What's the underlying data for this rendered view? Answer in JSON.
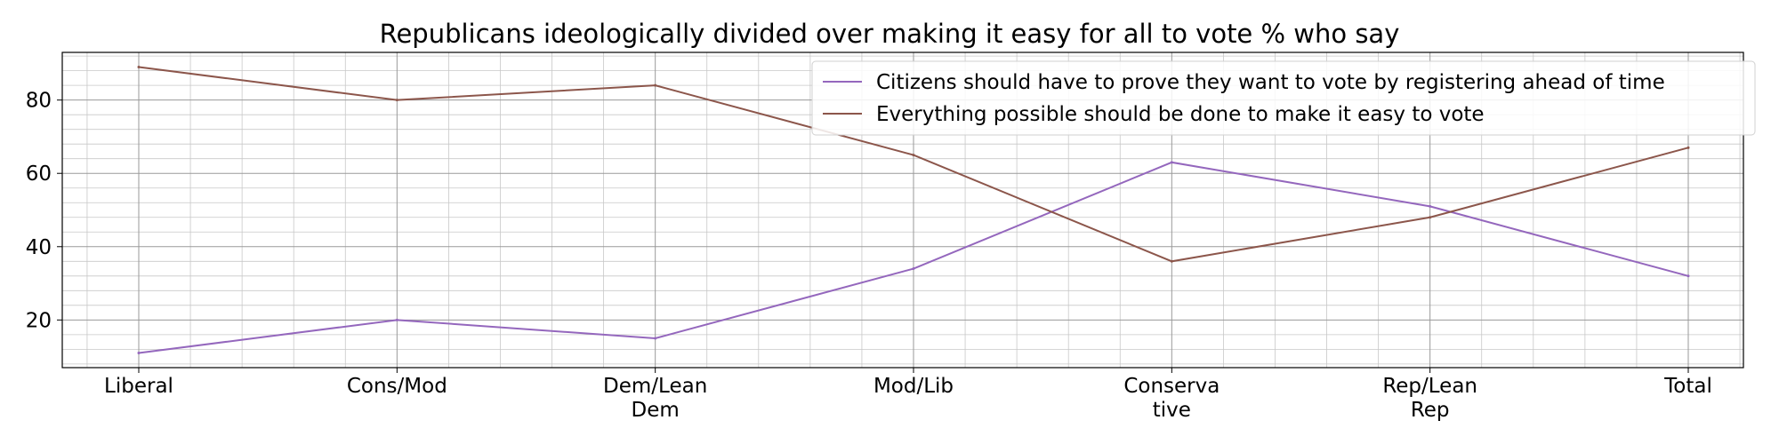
{
  "chart_data": {
    "type": "line",
    "title": "Republicans ideologically divided over making it easy for all to vote % who say",
    "xlabel": "",
    "ylabel": "",
    "categories": [
      "Liberal",
      "Cons/Mod",
      "Dem/Lean\nDem",
      "Mod/Lib",
      "Conserva\ntive",
      "Rep/Lean\nRep",
      "Total"
    ],
    "ylim": [
      7,
      93
    ],
    "y_ticks": [
      "20",
      "40",
      "60",
      "80"
    ],
    "grid": true,
    "legend_position": "top-right",
    "series": [
      {
        "name": "Citizens should have to prove they want to vote by registering ahead of time",
        "color": "#9467bd",
        "values": [
          11,
          20,
          15,
          34,
          63,
          51,
          32
        ]
      },
      {
        "name": "Everything possible should be done to make it easy to vote",
        "color": "#8c564b",
        "values": [
          89,
          80,
          84,
          65,
          36,
          48,
          67
        ]
      }
    ]
  }
}
